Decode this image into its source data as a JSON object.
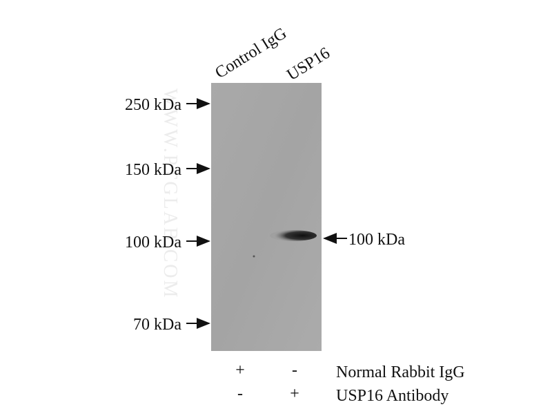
{
  "lanes": [
    "Control IgG",
    "USP16"
  ],
  "markers": [
    "250 kDa",
    "150 kDa",
    "100 kDa",
    "70 kDa"
  ],
  "band_label": "100 kDa",
  "conditions": [
    {
      "label": "Normal Rabbit IgG",
      "signs": [
        "+",
        "-"
      ]
    },
    {
      "label": "USP16 Antibody",
      "signs": [
        "-",
        "+"
      ]
    }
  ],
  "watermark": "WWW.PTGLAB.COM"
}
